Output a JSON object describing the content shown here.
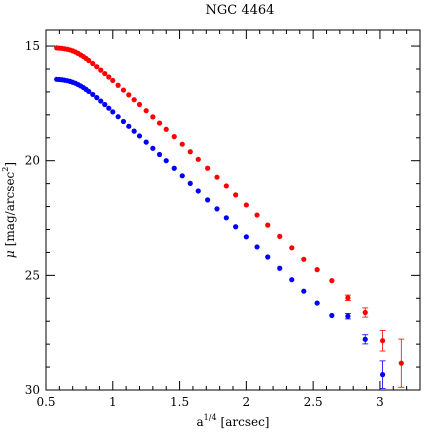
{
  "chart_data": {
    "type": "scatter",
    "title": "NGC 4464",
    "xlabel": "a",
    "xlabel_superscript": "1/4",
    "xlabel_unit": "[arcsec]",
    "ylabel_symbol": "μ",
    "ylabel_unit_prefix": "[mag/arcsec",
    "ylabel_unit_sup": "2",
    "ylabel_unit_suffix": "]",
    "xlim": [
      0.5,
      3.3
    ],
    "ylim": [
      30,
      14.3
    ],
    "y_inverted": true,
    "x_ticks": [
      0.5,
      1,
      1.5,
      2,
      2.5,
      3
    ],
    "x_tick_labels": [
      "0.5",
      "1",
      "1.5",
      "2",
      "2.5",
      "3"
    ],
    "y_ticks": [
      15,
      20,
      25,
      30
    ],
    "y_tick_labels": [
      "15",
      "20",
      "25",
      "30"
    ],
    "series": [
      {
        "color": "#ff0000",
        "x": [
          0.58,
          0.6,
          0.62,
          0.64,
          0.66,
          0.68,
          0.7,
          0.72,
          0.74,
          0.76,
          0.78,
          0.8,
          0.82,
          0.85,
          0.88,
          0.91,
          0.94,
          0.97,
          1.0,
          1.04,
          1.08,
          1.12,
          1.16,
          1.2,
          1.25,
          1.3,
          1.35,
          1.4,
          1.46,
          1.52,
          1.58,
          1.64,
          1.71,
          1.78,
          1.85,
          1.92,
          2.0,
          2.08,
          2.16,
          2.25,
          2.34,
          2.43,
          2.53,
          2.64,
          2.76,
          2.89,
          3.02,
          3.16
        ],
        "y": [
          15.08,
          15.09,
          15.1,
          15.12,
          15.14,
          15.17,
          15.21,
          15.26,
          15.32,
          15.39,
          15.46,
          15.54,
          15.63,
          15.76,
          15.9,
          16.05,
          16.2,
          16.35,
          16.5,
          16.71,
          16.92,
          17.13,
          17.34,
          17.55,
          17.82,
          18.09,
          18.36,
          18.63,
          18.95,
          19.28,
          19.61,
          19.94,
          20.33,
          20.72,
          21.1,
          21.49,
          21.93,
          22.37,
          22.81,
          23.3,
          23.8,
          24.3,
          24.75,
          25.23,
          25.98,
          26.62,
          27.85,
          28.83
        ],
        "error": [
          0,
          0,
          0,
          0,
          0,
          0,
          0,
          0,
          0,
          0,
          0,
          0,
          0,
          0,
          0,
          0,
          0,
          0,
          0,
          0,
          0,
          0,
          0,
          0,
          0,
          0,
          0,
          0,
          0,
          0,
          0,
          0,
          0,
          0,
          0,
          0,
          0,
          0,
          0,
          0,
          0,
          0,
          0,
          0,
          0.12,
          0.2,
          0.45,
          1.05
        ]
      },
      {
        "color": "#0000ff",
        "x": [
          0.58,
          0.6,
          0.62,
          0.64,
          0.66,
          0.68,
          0.7,
          0.72,
          0.74,
          0.76,
          0.78,
          0.8,
          0.82,
          0.85,
          0.88,
          0.91,
          0.94,
          0.97,
          1.0,
          1.04,
          1.08,
          1.12,
          1.16,
          1.2,
          1.25,
          1.3,
          1.35,
          1.4,
          1.46,
          1.52,
          1.58,
          1.64,
          1.71,
          1.78,
          1.85,
          1.92,
          2.0,
          2.08,
          2.16,
          2.25,
          2.34,
          2.43,
          2.53,
          2.64,
          2.76,
          2.89,
          3.02
        ],
        "y": [
          16.45,
          16.46,
          16.47,
          16.49,
          16.51,
          16.54,
          16.58,
          16.62,
          16.68,
          16.74,
          16.81,
          16.89,
          16.98,
          17.11,
          17.25,
          17.4,
          17.55,
          17.71,
          17.87,
          18.08,
          18.29,
          18.5,
          18.71,
          18.92,
          19.19,
          19.46,
          19.73,
          20.0,
          20.33,
          20.66,
          20.99,
          21.32,
          21.71,
          22.1,
          22.49,
          22.88,
          23.32,
          23.76,
          24.2,
          24.69,
          25.19,
          25.69,
          26.21,
          26.75,
          26.78,
          27.79,
          29.33
        ],
        "error": [
          0,
          0,
          0,
          0,
          0,
          0,
          0,
          0,
          0,
          0,
          0,
          0,
          0,
          0,
          0,
          0,
          0,
          0,
          0,
          0,
          0,
          0,
          0,
          0,
          0,
          0,
          0,
          0,
          0,
          0,
          0,
          0,
          0,
          0,
          0,
          0,
          0,
          0,
          0,
          0,
          0,
          0,
          0,
          0,
          0.12,
          0.2,
          0.6
        ]
      }
    ],
    "grid": false,
    "legend": "none"
  }
}
